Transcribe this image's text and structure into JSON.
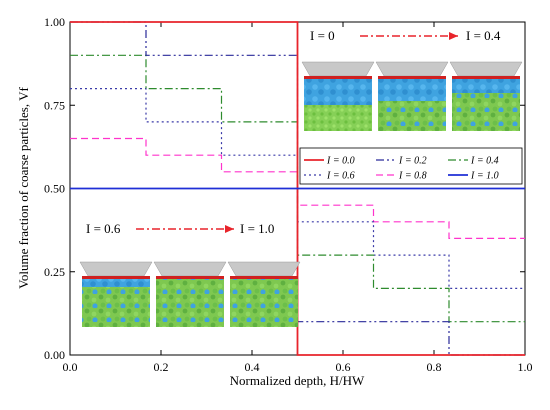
{
  "chart_data": {
    "type": "line",
    "xlabel": "Normalized depth, H/HW",
    "ylabel": "Volume fraction of coarse particles, Vf",
    "xlim": [
      0,
      1.0
    ],
    "ylim": [
      0,
      1.0
    ],
    "x_ticks": [
      "0.0",
      "0.2",
      "0.4",
      "0.6",
      "0.8",
      "1.0"
    ],
    "y_ticks": [
      "0.00",
      "0.25",
      "0.50",
      "0.75",
      "1.00"
    ],
    "legend_placement": "center-right",
    "series": [
      {
        "name": "I = 0.0",
        "color": "#e8242b",
        "dash": "solid",
        "x": [
          0,
          0.5,
          0.5,
          1.0
        ],
        "y": [
          1.0,
          1.0,
          0.0,
          0.0
        ]
      },
      {
        "name": "I = 0.2",
        "color": "#2a2a9a",
        "dash": "dashdotdot",
        "x": [
          0,
          0.167,
          0.167,
          0.5,
          0.5,
          0.667,
          0.667,
          0.833,
          0.833,
          1.0
        ],
        "y": [
          1.0,
          1.0,
          0.9,
          0.9,
          0.1,
          0.1,
          0.1,
          0.1,
          0.0,
          0.0
        ]
      },
      {
        "name": "I = 0.4",
        "color": "#2e8b2e",
        "dash": "dashdot",
        "x": [
          0,
          0.167,
          0.167,
          0.333,
          0.333,
          0.5,
          0.5,
          0.667,
          0.667,
          0.833,
          0.833,
          1.0
        ],
        "y": [
          0.9,
          0.9,
          0.8,
          0.8,
          0.7,
          0.7,
          0.3,
          0.3,
          0.2,
          0.2,
          0.1,
          0.1
        ]
      },
      {
        "name": "I = 0.6",
        "color": "#3a3aa8",
        "dash": "dot",
        "x": [
          0,
          0.167,
          0.167,
          0.333,
          0.333,
          0.5,
          0.5,
          0.667,
          0.667,
          0.833,
          0.833,
          1.0
        ],
        "y": [
          0.8,
          0.8,
          0.7,
          0.7,
          0.6,
          0.6,
          0.4,
          0.4,
          0.3,
          0.3,
          0.2,
          0.2
        ]
      },
      {
        "name": "I = 0.8",
        "color": "#ff33cc",
        "dash": "dash",
        "x": [
          0,
          0.167,
          0.167,
          0.333,
          0.333,
          0.5,
          0.5,
          0.667,
          0.667,
          0.833,
          0.833,
          1.0
        ],
        "y": [
          0.65,
          0.65,
          0.6,
          0.6,
          0.55,
          0.55,
          0.45,
          0.45,
          0.4,
          0.4,
          0.35,
          0.35
        ]
      },
      {
        "name": "I = 1.0",
        "color": "#1f2fd6",
        "dash": "solid",
        "x": [
          0,
          1.0
        ],
        "y": [
          0.5,
          0.5
        ]
      }
    ],
    "annotations": [
      {
        "from": "I = 0",
        "to": "I = 0.4"
      },
      {
        "from": "I = 0.6",
        "to": "I = 1.0"
      }
    ]
  },
  "colors": {
    "particle_fine": "#7ec850",
    "particle_coarse": "#3fa3e0",
    "container_frame": "#b8b8b8",
    "top_plate": "#d02020"
  }
}
